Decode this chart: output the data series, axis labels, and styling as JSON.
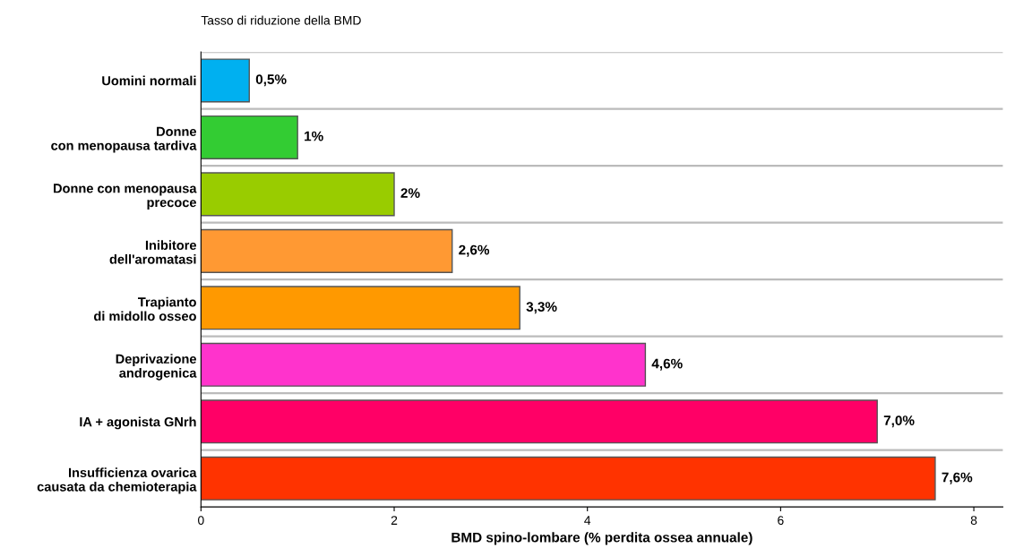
{
  "chart_data": {
    "type": "bar",
    "orientation": "horizontal",
    "title": "Tasso di riduzione della BMD",
    "xlabel": "BMD spino-lombare (% perdita ossea annuale)",
    "categories": [
      "Uomini normali",
      "Donne\ncon menopausa tardiva",
      "Donne con menopausa\nprecoce",
      "Inibitore\ndell'aromatasi",
      "Trapianto\ndi midollo osseo",
      "Deprivazione\nandrogenica",
      "IA + agonista GNrh",
      "Insufficienza ovarica\ncausata da chemioterapia"
    ],
    "values": [
      0.5,
      1,
      2,
      2.6,
      3.3,
      4.6,
      7.0,
      7.6
    ],
    "value_labels": [
      "0,5%",
      "1%",
      "2%",
      "2,6%",
      "3,3%",
      "4,6%",
      "7,0%",
      "7,6%"
    ],
    "colors": [
      "#00b0f0",
      "#33cc33",
      "#99cc00",
      "#ff9933",
      "#ff9900",
      "#ff33cc",
      "#ff0066",
      "#ff3300"
    ],
    "xlim": [
      0,
      8.3
    ],
    "xticks": [
      0,
      2,
      4,
      6,
      8
    ]
  }
}
